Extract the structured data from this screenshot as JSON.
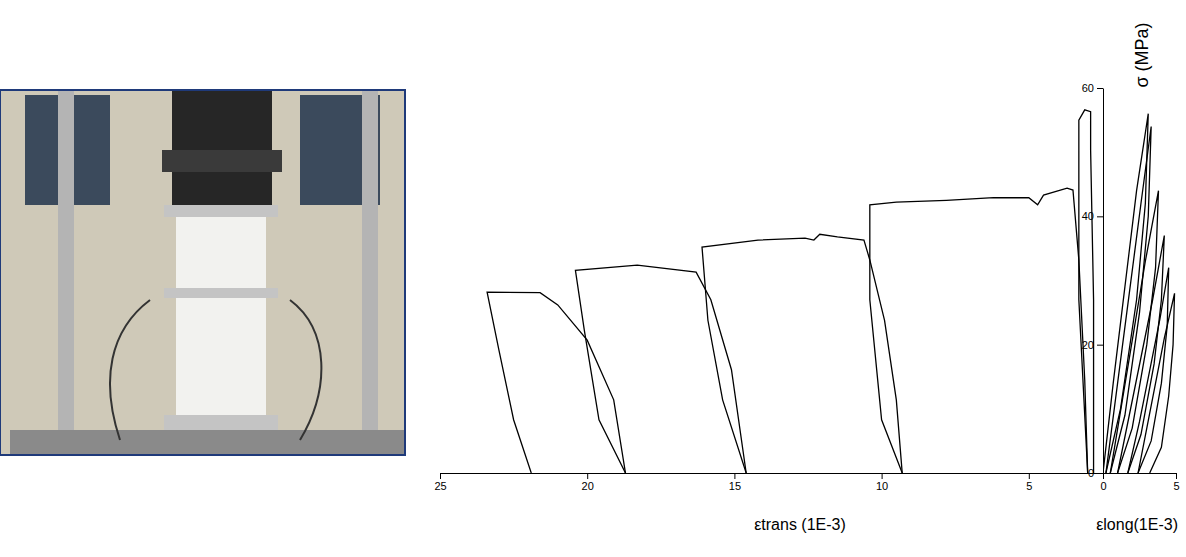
{
  "chart_data": [
    {
      "type": "line",
      "x_label": "εtrans (1E-3)",
      "y_label": "σ (MPa)",
      "xlim": [
        25,
        0
      ],
      "xticks": [
        25,
        20,
        15,
        10,
        5
      ],
      "ylim": [
        0,
        60
      ],
      "yticks": [
        0,
        20,
        40,
        60
      ],
      "color": "#000000",
      "series": [
        {
          "x": [
            21.9,
            22.5,
            23.0,
            23.4,
            21.6,
            21.0,
            20.0,
            19.1,
            18.7
          ],
          "values": [
            0,
            8.3,
            19.2,
            28.2,
            28.1,
            26.2,
            20.7,
            11.4,
            0
          ]
        },
        {
          "x": [
            18.7,
            19.6,
            20.1,
            20.4,
            18.3,
            16.3,
            15.8,
            15.1,
            14.6
          ],
          "values": [
            0,
            8.3,
            22.3,
            31.6,
            32.4,
            31.3,
            27.0,
            16.1,
            0
          ]
        },
        {
          "x": [
            14.6,
            15.4,
            15.9,
            16.1,
            14.2,
            12.6,
            12.3,
            12.1,
            11.5,
            10.6,
            10.4,
            9.9,
            9.5,
            9.3
          ],
          "values": [
            0,
            11.4,
            23.8,
            35.2,
            36.3,
            36.6,
            36.3,
            37.2,
            36.8,
            36.3,
            33.2,
            23.8,
            11.4,
            0
          ]
        },
        {
          "x": [
            9.3,
            10.0,
            10.4,
            10.4,
            9.5,
            7.8,
            6.2,
            5.0,
            4.7,
            4.5,
            3.7,
            3.5,
            3.3,
            3.1,
            3.0
          ],
          "values": [
            0,
            8.3,
            27.0,
            41.8,
            42.2,
            42.5,
            42.9,
            42.9,
            41.8,
            43.3,
            44.4,
            44.1,
            33.2,
            14.5,
            0
          ]
        },
        {
          "x": [
            3.0,
            3.3,
            3.3,
            3.3,
            3.1,
            2.9,
            2.9,
            2.8,
            2.8
          ],
          "values": [
            0,
            27.0,
            49.6,
            55.0,
            56.6,
            56.3,
            50.3,
            27.0,
            0
          ]
        }
      ]
    },
    {
      "type": "line",
      "x_label": "εlong(1E-3)",
      "xlim": [
        0,
        5
      ],
      "xticks": [
        0,
        5
      ],
      "ylim": [
        0,
        60
      ],
      "color": "#000000",
      "series": [
        {
          "x": [
            0,
            0.7,
            1.5,
            2.3,
            3.1,
            2.9,
            2.3,
            1.2,
            0.2
          ],
          "values": [
            0,
            14,
            29,
            44,
            56,
            42,
            27,
            10,
            0
          ]
        },
        {
          "x": [
            0.2,
            1.0,
            1.8,
            2.6,
            3.3,
            3.1,
            2.5,
            1.5,
            0.5
          ],
          "values": [
            0,
            14,
            28,
            42,
            54,
            40,
            25,
            9,
            0
          ]
        },
        {
          "x": [
            0.5,
            1.3,
            2.1,
            2.9,
            3.8,
            3.6,
            3.0,
            2.0,
            1.0
          ],
          "values": [
            0,
            11,
            22,
            33,
            44,
            32,
            20,
            7,
            0
          ]
        },
        {
          "x": [
            1.0,
            1.8,
            2.6,
            3.4,
            4.2,
            4.0,
            3.5,
            2.6,
            1.7
          ],
          "values": [
            0,
            9,
            18,
            27,
            37,
            27,
            17,
            6,
            0
          ]
        },
        {
          "x": [
            1.7,
            2.5,
            3.2,
            3.9,
            4.5,
            4.4,
            4.0,
            3.3,
            2.4
          ],
          "values": [
            0,
            8,
            16,
            24,
            32,
            23,
            14,
            5,
            0
          ]
        },
        {
          "x": [
            2.4,
            3.0,
            3.6,
            4.2,
            4.9,
            4.8,
            4.5,
            4.0,
            3.2
          ],
          "values": [
            0,
            7,
            14,
            21,
            28,
            20,
            12,
            4,
            0
          ]
        }
      ]
    }
  ]
}
